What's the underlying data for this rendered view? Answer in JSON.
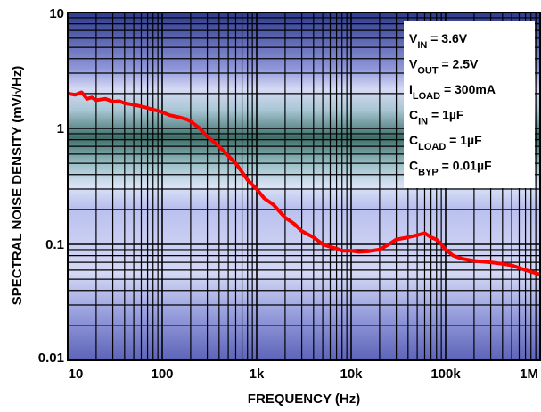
{
  "chart_data": {
    "type": "line",
    "xlabel": "FREQUENCY (Hz)",
    "ylabel": "SPECTRAL NOISE DENSITY (mV/√Hz)",
    "x_scale": "log",
    "y_scale": "log",
    "xlim": [
      10,
      1000000
    ],
    "ylim": [
      0.01,
      10
    ],
    "grid": true,
    "x_ticks": [
      {
        "value": 10,
        "label": "10"
      },
      {
        "value": 100,
        "label": "100"
      },
      {
        "value": 1000,
        "label": "1k"
      },
      {
        "value": 10000,
        "label": "10k"
      },
      {
        "value": 100000,
        "label": "100k"
      },
      {
        "value": 1000000,
        "label": "1M"
      }
    ],
    "y_ticks": [
      {
        "value": 0.01,
        "label": "0.01"
      },
      {
        "value": 0.1,
        "label": "0.1"
      },
      {
        "value": 1,
        "label": "1"
      },
      {
        "value": 10,
        "label": "10"
      }
    ],
    "legend_position": "top-right",
    "conditions": [
      {
        "param": "V",
        "sub": "IN",
        "value": " = 3.6V"
      },
      {
        "param": "V",
        "sub": "OUT",
        "value": " = 2.5V"
      },
      {
        "param": "I",
        "sub": "LOAD",
        "value": " = 300mA"
      },
      {
        "param": "C",
        "sub": "IN",
        "value": " = 1µF"
      },
      {
        "param": "C",
        "sub": "LOAD",
        "value": " = 1µF"
      },
      {
        "param": "C",
        "sub": "BYP",
        "value": " = 0.01µF"
      }
    ],
    "series": [
      {
        "color": "#ff0000",
        "points": [
          [
            10,
            2.0
          ],
          [
            12,
            1.95
          ],
          [
            14,
            2.05
          ],
          [
            16,
            1.8
          ],
          [
            18,
            1.85
          ],
          [
            20,
            1.75
          ],
          [
            25,
            1.8
          ],
          [
            30,
            1.7
          ],
          [
            35,
            1.72
          ],
          [
            40,
            1.65
          ],
          [
            50,
            1.6
          ],
          [
            60,
            1.55
          ],
          [
            70,
            1.5
          ],
          [
            80,
            1.45
          ],
          [
            90,
            1.42
          ],
          [
            100,
            1.38
          ],
          [
            120,
            1.3
          ],
          [
            150,
            1.25
          ],
          [
            180,
            1.2
          ],
          [
            200,
            1.15
          ],
          [
            250,
            1.0
          ],
          [
            300,
            0.85
          ],
          [
            400,
            0.7
          ],
          [
            500,
            0.58
          ],
          [
            600,
            0.5
          ],
          [
            700,
            0.42
          ],
          [
            800,
            0.36
          ],
          [
            1000,
            0.3
          ],
          [
            1200,
            0.25
          ],
          [
            1500,
            0.22
          ],
          [
            2000,
            0.17
          ],
          [
            2500,
            0.15
          ],
          [
            3000,
            0.13
          ],
          [
            4000,
            0.115
          ],
          [
            5000,
            0.1
          ],
          [
            6000,
            0.095
          ],
          [
            7000,
            0.092
          ],
          [
            8000,
            0.088
          ],
          [
            10000,
            0.088
          ],
          [
            12000,
            0.086
          ],
          [
            15000,
            0.087
          ],
          [
            20000,
            0.09
          ],
          [
            25000,
            0.1
          ],
          [
            30000,
            0.11
          ],
          [
            40000,
            0.115
          ],
          [
            50000,
            0.12
          ],
          [
            60000,
            0.125
          ],
          [
            70000,
            0.115
          ],
          [
            80000,
            0.11
          ],
          [
            90000,
            0.1
          ],
          [
            100000,
            0.09
          ],
          [
            120000,
            0.08
          ],
          [
            150000,
            0.075
          ],
          [
            200000,
            0.072
          ],
          [
            300000,
            0.07
          ],
          [
            400000,
            0.068
          ],
          [
            500000,
            0.066
          ],
          [
            700000,
            0.06
          ],
          [
            1000000,
            0.055
          ]
        ]
      }
    ]
  }
}
